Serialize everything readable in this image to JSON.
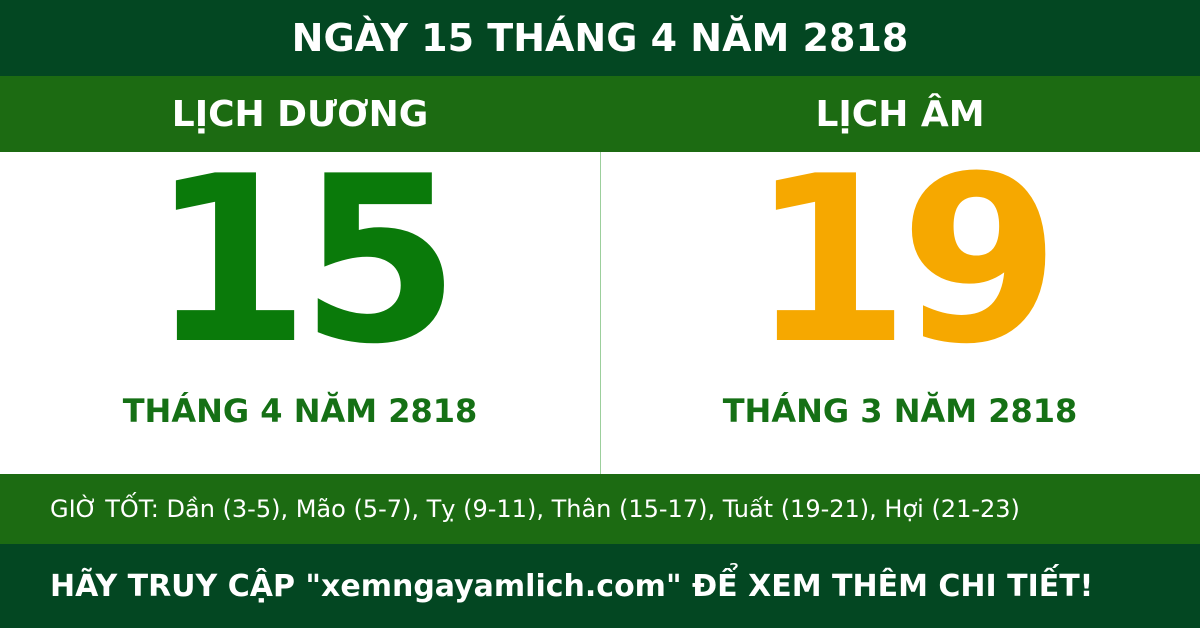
{
  "header": {
    "title": "NGÀY 15 THÁNG 4 NĂM 2818"
  },
  "solar": {
    "label": "LỊCH DƯƠNG",
    "day": "15",
    "month_year": "THÁNG 4 NĂM 2818"
  },
  "lunar": {
    "label": "LỊCH ÂM",
    "day": "19",
    "month_year": "THÁNG 3 NĂM 2818"
  },
  "good_hours": "GIỜ TỐT: Dần (3-5), Mão (5-7), Tỵ (9-11), Thân (15-17), Tuất (19-21), Hợi (21-23)",
  "footer": "HÃY TRUY CẬP \"xemngayamlich.com\" ĐỂ XEM THÊM CHI TIẾT!"
}
